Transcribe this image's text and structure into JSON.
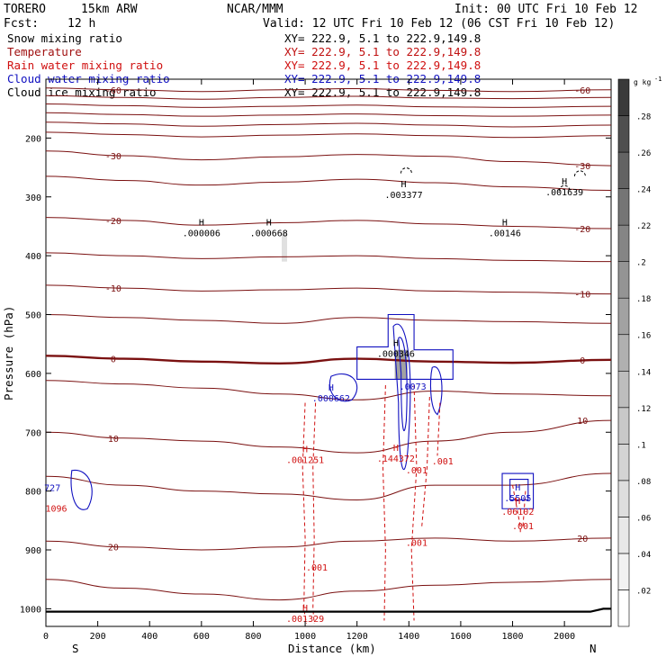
{
  "header": {
    "model": "TORERO",
    "resolution": "15km ARW",
    "center": "NCAR/MMM",
    "init": "Init: 00 UTC Fri 10 Feb 12",
    "fcst_label": "Fcst:",
    "fcst_value": "12 h",
    "valid": "Valid: 12 UTC Fri 10 Feb 12 (06 CST Fri 10 Feb 12)"
  },
  "fields": [
    {
      "name": "Snow mixing ratio",
      "color": "#000000",
      "xy": "XY= 222.9,  5.1 to 222.9,149.8",
      "xy_color": "#000000"
    },
    {
      "name": "Temperature",
      "color": "#a01010",
      "xy": "XY= 222.9,  5.1 to 222.9,149.8",
      "xy_color": "#c01010"
    },
    {
      "name": "Rain water mixing ratio",
      "color": "#d01010",
      "xy": "XY= 222.9,  5.1 to 222.9,149.8",
      "xy_color": "#d01010"
    },
    {
      "name": "Cloud water mixing ratio",
      "color": "#1010c0",
      "xy": "XY= 222.9,  5.1 to 222.9,149.8",
      "xy_color": "#1010c0"
    },
    {
      "name": "Cloud ice mixing ratio",
      "color": "#000000",
      "xy": "XY= 222.9,  5.1 to 222.9,149.8",
      "xy_color": "#000000"
    }
  ],
  "chart_data": {
    "type": "contour-cross-section",
    "xlabel": "Distance (km)",
    "ylabel": "Pressure (hPa)",
    "xlim": [
      0,
      2180
    ],
    "ylim": [
      1030,
      100
    ],
    "x_ticks": [
      0,
      200,
      400,
      600,
      800,
      1000,
      1200,
      1400,
      1600,
      1800,
      2000
    ],
    "y_ticks": [
      200,
      300,
      400,
      500,
      600,
      700,
      800,
      900,
      1000
    ],
    "x_end_labels": {
      "left": "S",
      "right": "N"
    },
    "colorbar": {
      "unit": "g kg",
      "unit_exp": "-1",
      "ticks": [
        ".02",
        ".04",
        ".06",
        ".08",
        ".1",
        ".12",
        ".14",
        ".16",
        ".18",
        ".2",
        ".22",
        ".24",
        ".26",
        ".28"
      ],
      "colors": [
        "#ffffff",
        "#f2f2f2",
        "#e8e8e8",
        "#dedede",
        "#d4d4d4",
        "#c8c8c8",
        "#bdbdbd",
        "#b0b0b0",
        "#a2a2a2",
        "#949494",
        "#858585",
        "#757575",
        "#636363",
        "#4f4f4f",
        "#3a3a3a"
      ]
    },
    "temperature_contours": [
      {
        "t": -60,
        "label": "-60",
        "p": [
          115,
          118,
          121,
          118,
          116,
          119,
          121,
          118
        ]
      },
      {
        "t": -55,
        "p": [
          128,
          131,
          134,
          131,
          129,
          132,
          133,
          131
        ]
      },
      {
        "t": -50,
        "p": [
          142,
          145,
          148,
          146,
          144,
          147,
          148,
          146
        ]
      },
      {
        "t": -45,
        "p": [
          157,
          160,
          163,
          161,
          159,
          162,
          163,
          161
        ]
      },
      {
        "t": -40,
        "p": [
          173,
          176,
          180,
          177,
          175,
          178,
          181,
          178
        ]
      },
      {
        "t": -35,
        "p": [
          190,
          194,
          198,
          195,
          193,
          196,
          199,
          196
        ]
      },
      {
        "t": -30,
        "label": "-30",
        "p": [
          222,
          230,
          237,
          232,
          228,
          231,
          240,
          247
        ]
      },
      {
        "t": -25,
        "p": [
          265,
          272,
          280,
          275,
          270,
          276,
          283,
          289
        ]
      },
      {
        "t": -20,
        "label": "-20",
        "p": [
          335,
          340,
          348,
          344,
          340,
          346,
          350,
          354
        ]
      },
      {
        "t": -15,
        "p": [
          395,
          400,
          405,
          402,
          400,
          405,
          408,
          410
        ]
      },
      {
        "t": -10,
        "label": "-10",
        "p": [
          450,
          455,
          460,
          458,
          455,
          460,
          462,
          465
        ]
      },
      {
        "t": -5,
        "p": [
          500,
          505,
          510,
          515,
          505,
          510,
          512,
          515
        ]
      },
      {
        "t": 0,
        "label": "0",
        "p": [
          570,
          575,
          580,
          583,
          575,
          580,
          582,
          577
        ],
        "bold": true
      },
      {
        "t": 5,
        "p": [
          612,
          618,
          625,
          635,
          645,
          630,
          635,
          638
        ]
      },
      {
        "t": 10,
        "label": "10",
        "p": [
          700,
          710,
          715,
          725,
          735,
          715,
          700,
          680
        ]
      },
      {
        "t": 15,
        "p": [
          775,
          790,
          800,
          805,
          815,
          790,
          790,
          770
        ]
      },
      {
        "t": 20,
        "label": "20",
        "p": [
          885,
          895,
          900,
          895,
          885,
          880,
          885,
          880
        ]
      },
      {
        "t": 25,
        "p": [
          950,
          965,
          975,
          985,
          970,
          960,
          955,
          950
        ]
      }
    ],
    "temperature_x": [
      0,
      300,
      600,
      900,
      1200,
      1500,
      1800,
      2180
    ],
    "highs": [
      {
        "x": 600,
        "p": 355,
        "label": ".000006",
        "color": "#000000"
      },
      {
        "x": 860,
        "p": 355,
        "label": ".000668",
        "color": "#000000"
      },
      {
        "x": 1380,
        "p": 290,
        "label": ".003377",
        "color": "#000000"
      },
      {
        "x": 1770,
        "p": 355,
        "label": ".00146",
        "color": "#000000"
      },
      {
        "x": 2000,
        "p": 285,
        "label": ".001639",
        "color": "#000000"
      },
      {
        "x": 1350,
        "p": 560,
        "label": ".000346",
        "color": "#000000"
      },
      {
        "x": 1100,
        "p": 635,
        "label": ".000662",
        "color": "#1010c0"
      },
      {
        "x": 1000,
        "p": 740,
        "label": ".001251",
        "color": "#d01010"
      },
      {
        "x": 1350,
        "p": 738,
        "label": ".144372",
        "color": "#d01010"
      },
      {
        "x": 1000,
        "p": 1010,
        "label": ".001329",
        "color": "#d01010"
      },
      {
        "x": 1820,
        "p": 805,
        "label": ".5505",
        "color": "#1010c0"
      },
      {
        "x": 1820,
        "p": 828,
        "label": ".06102",
        "color": "#d01010"
      }
    ],
    "minor_labels": [
      {
        "x": 1415,
        "p": 628,
        "label": ".0073",
        "color": "#1010c0"
      },
      {
        "x": 1530,
        "p": 755,
        "label": ".001",
        "color": "#d01010"
      },
      {
        "x": 1430,
        "p": 770,
        "label": ".001",
        "color": "#d01010"
      },
      {
        "x": 1045,
        "p": 935,
        "label": ".001",
        "color": "#d01010"
      },
      {
        "x": 1430,
        "p": 893,
        "label": ".001",
        "color": "#d01010"
      },
      {
        "x": 1840,
        "p": 865,
        "label": ".001",
        "color": "#d01010"
      },
      {
        "x": 25,
        "p": 800,
        "label": "727",
        "color": "#1010c0"
      },
      {
        "x": 40,
        "p": 835,
        "label": "1096",
        "color": "#d01010"
      }
    ]
  }
}
